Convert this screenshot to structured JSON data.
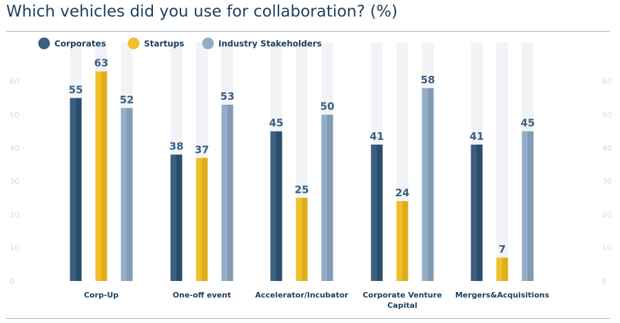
{
  "chart_data": {
    "type": "bar",
    "title": "Which vehicles did you use for collaboration? (%)",
    "categories": [
      "Corp-Up",
      "One-off event",
      "Accelerator/Incubator",
      "Corporate Venture Capital",
      "Mergers&Acquisitions"
    ],
    "category_lines": [
      [
        "Corp-Up"
      ],
      [
        "One-off event"
      ],
      [
        "Accelerator/Incubator"
      ],
      [
        "Corporate Venture",
        "Capital"
      ],
      [
        "Mergers&Acquisitions"
      ]
    ],
    "series": [
      {
        "name": "Corporates",
        "values": [
          55,
          38,
          45,
          41,
          41
        ],
        "color": "#3d5f7f"
      },
      {
        "name": "Startups",
        "values": [
          63,
          37,
          25,
          24,
          7
        ],
        "color": "#f0bf2a"
      },
      {
        "name": "Industry Stakeholders",
        "values": [
          52,
          53,
          50,
          58,
          45
        ],
        "color": "#93adc6"
      }
    ],
    "ylim": [
      0,
      70
    ],
    "yticks": [
      0,
      10,
      20,
      30,
      40,
      50,
      60
    ],
    "legend_position": "top-left",
    "background_track_color": "#f1f3f6"
  }
}
